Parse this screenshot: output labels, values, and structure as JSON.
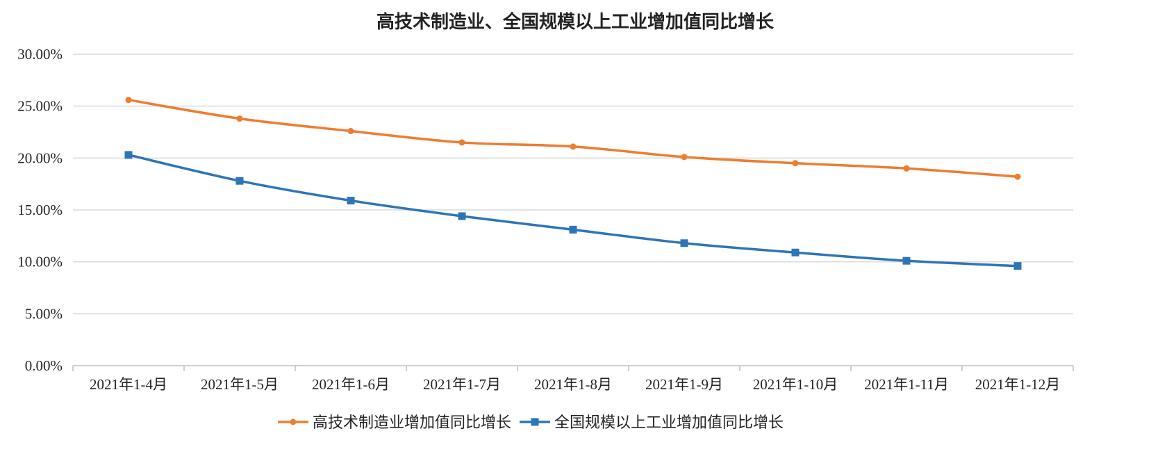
{
  "chart_data": {
    "type": "line",
    "title": "高技术制造业、全国规模以上工业增加值同比增长",
    "categories": [
      "2021年1-4月",
      "2021年1-5月",
      "2021年1-6月",
      "2021年1-7月",
      "2021年1-8月",
      "2021年1-9月",
      "2021年1-10月",
      "2021年1-11月",
      "2021年1-12月"
    ],
    "series": [
      {
        "name": "高技术制造业增加值同比增长",
        "color": "#ED7D31",
        "marker": "circle",
        "values": [
          25.6,
          23.8,
          22.6,
          21.5,
          21.1,
          20.1,
          19.5,
          19.0,
          18.2
        ]
      },
      {
        "name": "全国规模以上工业增加值同比增长",
        "color": "#2E75B6",
        "marker": "square",
        "values": [
          20.3,
          17.8,
          15.9,
          14.4,
          13.1,
          11.8,
          10.9,
          10.1,
          9.6
        ]
      }
    ],
    "ylim": [
      0,
      30
    ],
    "yticks": [
      "0.00%",
      "5.00%",
      "10.00%",
      "15.00%",
      "20.00%",
      "25.00%",
      "30.00%"
    ],
    "xlabel": "",
    "ylabel": "",
    "grid": true,
    "legend": "bottom"
  }
}
